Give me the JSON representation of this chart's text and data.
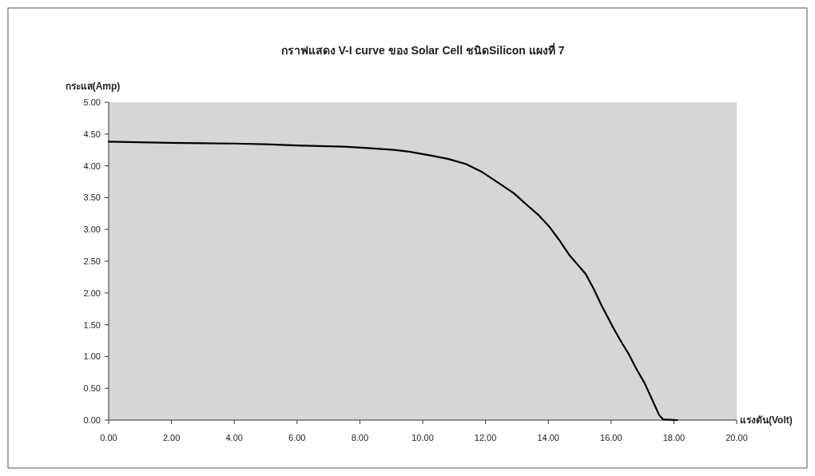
{
  "chart_data": {
    "type": "line",
    "title": "กราฟแสดง V-I curve ของ Solar Cell ชนิดSilicon แผงที่ 7",
    "xlabel": "แรงดัน(Volt)",
    "ylabel": "กระแส(Amp)",
    "series": [
      {
        "color": "#000000",
        "x": [
          0,
          2,
          4,
          5,
          6,
          6.72,
          7.5,
          8.24,
          9.08,
          9.6,
          10.28,
          10.8,
          11.37,
          11.9,
          12.39,
          12.9,
          13.33,
          13.7,
          14.02,
          14.35,
          14.68,
          15.19,
          15.45,
          15.7,
          16.06,
          16.3,
          16.56,
          16.8,
          17.07,
          17.3,
          17.53,
          17.66,
          18.1
        ],
        "values": [
          4.38,
          4.36,
          4.35,
          4.34,
          4.32,
          4.31,
          4.3,
          4.28,
          4.25,
          4.22,
          4.16,
          4.11,
          4.03,
          3.9,
          3.74,
          3.57,
          3.38,
          3.22,
          3.05,
          2.83,
          2.59,
          2.3,
          2.06,
          1.8,
          1.46,
          1.25,
          1.04,
          0.81,
          0.58,
          0.33,
          0.08,
          0.01,
          0
        ]
      }
    ],
    "xlim": [
      0,
      20
    ],
    "xticks": [
      {
        "value": 0,
        "label": "0.00"
      },
      {
        "value": 2,
        "label": "2.00"
      },
      {
        "value": 4,
        "label": "4.00"
      },
      {
        "value": 6,
        "label": "6.00"
      },
      {
        "value": 8,
        "label": "8.00"
      },
      {
        "value": 10,
        "label": "10.00"
      },
      {
        "value": 12,
        "label": "12.00"
      },
      {
        "value": 14,
        "label": "14.00"
      },
      {
        "value": 16,
        "label": "16.00"
      },
      {
        "value": 18,
        "label": "18.00"
      },
      {
        "value": 20,
        "label": "20.00"
      }
    ],
    "ylim": [
      0,
      5
    ],
    "yticks": [
      {
        "value": 0,
        "label": "0.00"
      },
      {
        "value": 0.5,
        "label": "0.50"
      },
      {
        "value": 1,
        "label": "1.00"
      },
      {
        "value": 1.5,
        "label": "1.50"
      },
      {
        "value": 2,
        "label": "2.00"
      },
      {
        "value": 2.5,
        "label": "2.50"
      },
      {
        "value": 3,
        "label": "3.00"
      },
      {
        "value": 3.5,
        "label": "3.50"
      },
      {
        "value": 4,
        "label": "4.00"
      },
      {
        "value": 4.5,
        "label": "4.50"
      },
      {
        "value": 5,
        "label": "5.00"
      }
    ],
    "grid": false,
    "marker": "none",
    "line_style": "solid"
  }
}
